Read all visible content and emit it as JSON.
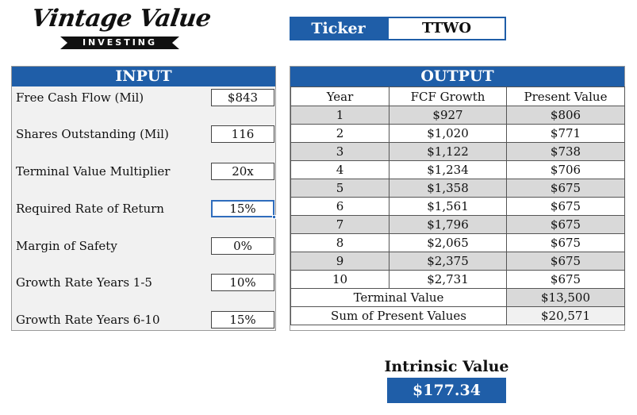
{
  "logo": {
    "script_text": "Vintage Value",
    "sub_text": "INVESTING"
  },
  "ticker": {
    "label": "Ticker",
    "value": "TTWO"
  },
  "input": {
    "header": "INPUT",
    "fields": [
      {
        "label": "Free Cash Flow (Mil)",
        "value": "$843"
      },
      {
        "label": "Shares Outstanding (Mil)",
        "value": "116"
      },
      {
        "label": "Terminal Value Multiplier",
        "value": "20x"
      },
      {
        "label": "Required Rate of Return",
        "value": "15%"
      },
      {
        "label": "Margin of Safety",
        "value": "0%"
      },
      {
        "label": "Growth Rate Years 1-5",
        "value": "10%"
      },
      {
        "label": "Growth Rate Years 6-10",
        "value": "15%"
      }
    ]
  },
  "output": {
    "header": "OUTPUT",
    "columns": [
      "Year",
      "FCF Growth",
      "Present Value"
    ],
    "rows": [
      {
        "year": "1",
        "fcf": "$927",
        "pv": "$806"
      },
      {
        "year": "2",
        "fcf": "$1,020",
        "pv": "$771"
      },
      {
        "year": "3",
        "fcf": "$1,122",
        "pv": "$738"
      },
      {
        "year": "4",
        "fcf": "$1,234",
        "pv": "$706"
      },
      {
        "year": "5",
        "fcf": "$1,358",
        "pv": "$675"
      },
      {
        "year": "6",
        "fcf": "$1,561",
        "pv": "$675"
      },
      {
        "year": "7",
        "fcf": "$1,796",
        "pv": "$675"
      },
      {
        "year": "8",
        "fcf": "$2,065",
        "pv": "$675"
      },
      {
        "year": "9",
        "fcf": "$2,375",
        "pv": "$675"
      },
      {
        "year": "10",
        "fcf": "$2,731",
        "pv": "$675"
      }
    ],
    "terminal_value_label": "Terminal Value",
    "terminal_value": "$13,500",
    "sum_pv_label": "Sum of Present Values",
    "sum_pv": "$20,571"
  },
  "intrinsic": {
    "label": "Intrinsic Value",
    "value": "$177.34"
  },
  "colors": {
    "accent": "#1f5ea8",
    "shade": "#d9d9d9",
    "panel_bg": "#f1f1f1"
  }
}
